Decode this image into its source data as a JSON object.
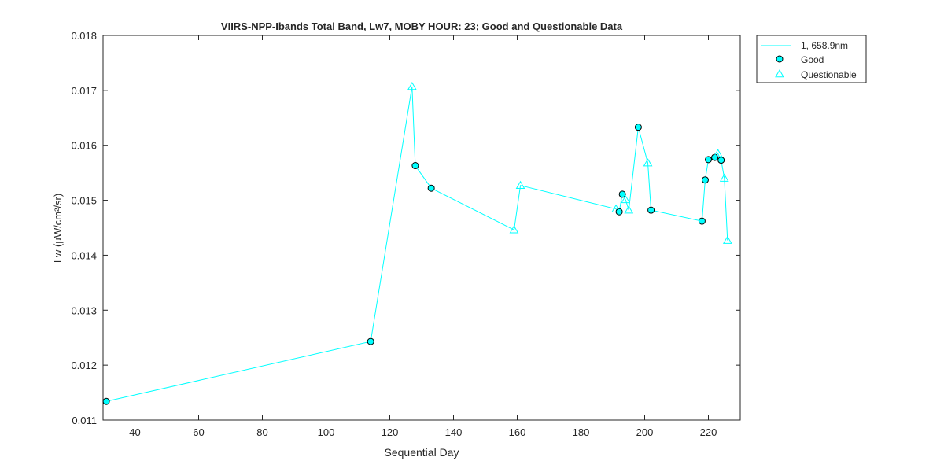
{
  "chart_data": {
    "type": "line",
    "title": "VIIRS-NPP-Ibands Total Band,  Lw7, MOBY HOUR: 23;  Good and Questionable Data",
    "xlabel": "Sequential Day",
    "ylabel": "Lw (µW/cm²/sr)",
    "xlim": [
      30,
      230
    ],
    "ylim": [
      0.011,
      0.018
    ],
    "xticks": [
      40,
      60,
      80,
      100,
      120,
      140,
      160,
      180,
      200,
      220
    ],
    "yticks": [
      0.011,
      0.012,
      0.013,
      0.014,
      0.015,
      0.016,
      0.017,
      0.018
    ],
    "xtick_labels": [
      "40",
      "60",
      "80",
      "100",
      "120",
      "140",
      "160",
      "180",
      "200",
      "220"
    ],
    "ytick_labels": [
      "0.011",
      "0.012",
      "0.013",
      "0.014",
      "0.015",
      "0.016",
      "0.017",
      "0.018"
    ],
    "grid": false,
    "legend_position": "outside-top-right",
    "line_color": "#00ffff",
    "marker_face_color": "#00ffff",
    "marker_edge_color": "#000000",
    "series": [
      {
        "name": "1, 658.9nm",
        "marker": "none",
        "x": [
          31,
          114,
          127,
          128,
          133,
          159,
          161,
          191,
          192,
          193,
          194,
          195,
          198,
          201,
          202,
          218,
          219,
          220,
          222,
          223,
          224,
          225,
          226
        ],
        "y": [
          0.01134,
          0.01243,
          0.01707,
          0.01563,
          0.01522,
          0.01446,
          0.01527,
          0.01484,
          0.01479,
          0.01511,
          0.01501,
          0.01482,
          0.01633,
          0.01568,
          0.01482,
          0.01462,
          0.01537,
          0.01574,
          0.01578,
          0.01585,
          0.01573,
          0.0154,
          0.01427
        ]
      },
      {
        "name": "Good",
        "marker": "circle",
        "x": [
          31,
          114,
          128,
          133,
          192,
          193,
          198,
          202,
          218,
          219,
          220,
          222,
          224
        ],
        "y": [
          0.01134,
          0.01243,
          0.01563,
          0.01522,
          0.01479,
          0.01511,
          0.01633,
          0.01482,
          0.01462,
          0.01537,
          0.01574,
          0.01578,
          0.01573
        ]
      },
      {
        "name": "Questionable",
        "marker": "triangle",
        "x": [
          127,
          159,
          161,
          191,
          194,
          195,
          201,
          223,
          225,
          226
        ],
        "y": [
          0.01707,
          0.01446,
          0.01527,
          0.01484,
          0.01501,
          0.01482,
          0.01568,
          0.01585,
          0.0154,
          0.01427
        ]
      }
    ]
  }
}
